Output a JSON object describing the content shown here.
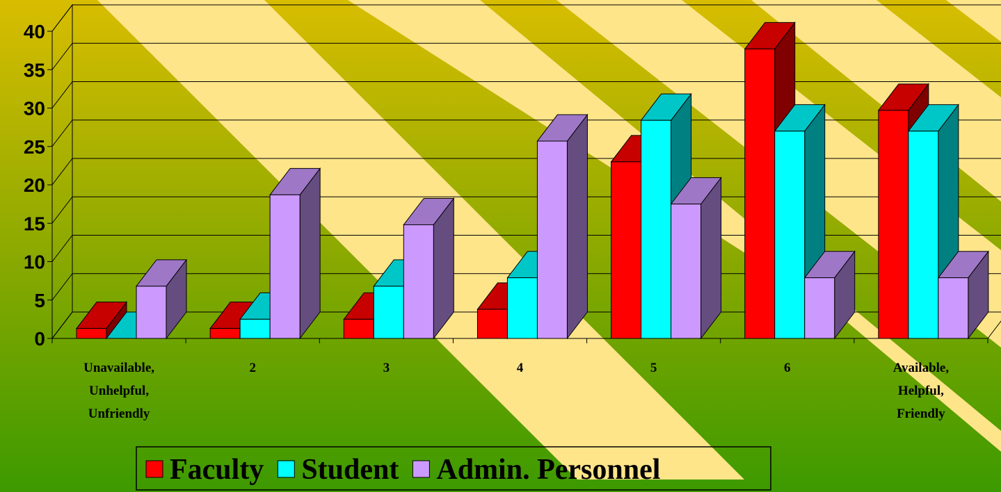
{
  "chart_data": {
    "type": "bar3d",
    "categories": [
      "Unavailable, Unhelpful, Unfriendly",
      "2",
      "3",
      "4",
      "5",
      "6",
      "Available, Helpful, Friendly"
    ],
    "series": [
      {
        "name": "Faculty",
        "color": "#ff0000",
        "values": [
          1.3,
          1.3,
          2.5,
          3.8,
          23,
          37.7,
          29.7
        ]
      },
      {
        "name": "Student",
        "color": "#00ffff",
        "values": [
          0,
          2.5,
          6.8,
          7.9,
          28.4,
          27,
          27
        ]
      },
      {
        "name": "Admin. Personnel",
        "color": "#cc99ff",
        "values": [
          6.8,
          18.7,
          14.8,
          25.7,
          17.5,
          7.9,
          7.9
        ]
      }
    ],
    "ylim": [
      0,
      40
    ],
    "yticks": [
      0,
      5,
      10,
      15,
      20,
      25,
      30,
      35,
      40
    ],
    "grid": true,
    "legend": "bottom"
  }
}
